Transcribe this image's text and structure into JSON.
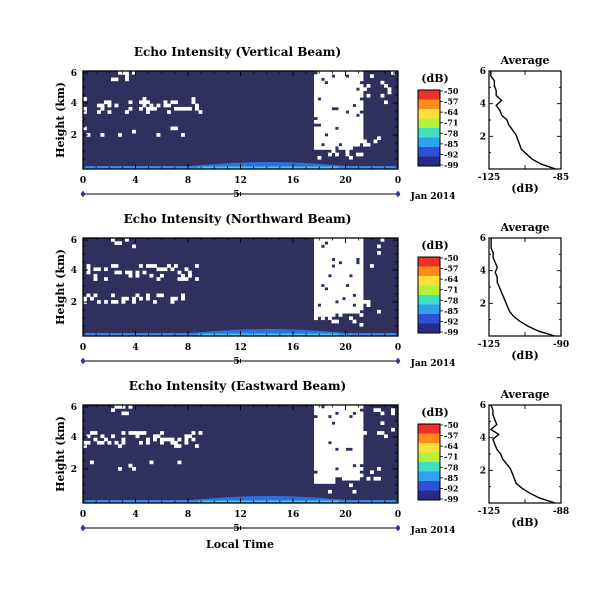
{
  "chart_data": {
    "type": "heatmap",
    "date_label": "Jan 2014",
    "xlabel": "Local Time",
    "time_ticks": [
      "0",
      "4",
      "8",
      "12",
      "16",
      "20",
      "0"
    ],
    "day_label": "5",
    "height_ticks": [
      "6",
      "4",
      "2"
    ],
    "colorbar": {
      "unit": "(dB)",
      "ticks": [
        "-50",
        "-57",
        "-64",
        "-71",
        "-78",
        "-85",
        "-92",
        "-99"
      ],
      "colors": [
        "#f0302a",
        "#ff8c1a",
        "#ffe03a",
        "#b5f03a",
        "#40e0c0",
        "#30a0f0",
        "#3050d8",
        "#2a2a8a"
      ]
    },
    "panels": [
      {
        "title": "Echo Intensity (Vertical Beam)",
        "ylabel": "Height (km)",
        "profile": {
          "title": "Average",
          "xlabel": "(dB)",
          "xticks": [
            "-125",
            "-85"
          ],
          "yticks": [
            "6",
            "4",
            "2"
          ],
          "xlim": [
            -125,
            -85
          ],
          "ylim": [
            0,
            6
          ],
          "height_km": [
            0.0,
            0.3,
            0.6,
            0.9,
            1.2,
            1.5,
            1.8,
            2.1,
            2.4,
            2.7,
            3.0,
            3.3,
            3.6,
            3.9,
            4.2,
            4.5,
            4.8,
            5.1,
            5.4,
            5.7,
            6.0
          ],
          "intensity_db": [
            -88,
            -96,
            -101,
            -104,
            -107,
            -108,
            -109,
            -110,
            -112,
            -114,
            -115,
            -118,
            -119,
            -121,
            -118,
            -121,
            -121,
            -122,
            -122,
            -124,
            -124
          ]
        }
      },
      {
        "title": "Echo Intensity (Northward Beam)",
        "ylabel": "Height (km)",
        "profile": {
          "title": "Average",
          "xlabel": "(dB)",
          "xticks": [
            "-125",
            "-90"
          ],
          "yticks": [
            "6",
            "4",
            "2"
          ],
          "xlim": [
            -125,
            -90
          ],
          "ylim": [
            0,
            6
          ],
          "height_km": [
            0.0,
            0.3,
            0.6,
            0.9,
            1.2,
            1.5,
            1.8,
            2.1,
            2.4,
            2.7,
            3.0,
            3.3,
            3.6,
            3.9,
            4.2,
            4.5,
            4.8,
            5.1,
            5.4,
            5.7,
            6.0
          ],
          "intensity_db": [
            -93,
            -101,
            -106,
            -110,
            -113,
            -115,
            -116,
            -117,
            -118,
            -119,
            -120,
            -121,
            -121,
            -122,
            -121,
            -122,
            -123,
            -123,
            -124,
            -124,
            -124
          ]
        }
      },
      {
        "title": "Echo Intensity (Eastward Beam)",
        "ylabel": "Height (km)",
        "profile": {
          "title": "Average",
          "xlabel": "(dB)",
          "xticks": [
            "-125",
            "-88"
          ],
          "yticks": [
            "6",
            "4",
            "2"
          ],
          "xlim": [
            -125,
            -88
          ],
          "ylim": [
            0,
            6
          ],
          "height_km": [
            0.0,
            0.3,
            0.6,
            0.9,
            1.2,
            1.5,
            1.8,
            2.1,
            2.4,
            2.7,
            3.0,
            3.3,
            3.6,
            3.9,
            4.2,
            4.5,
            4.8,
            5.1,
            5.4,
            5.7,
            6.0
          ],
          "intensity_db": [
            -91,
            -99,
            -104,
            -108,
            -111,
            -112,
            -113,
            -114,
            -116,
            -118,
            -119,
            -121,
            -122,
            -123,
            -120,
            -124,
            -121,
            -122,
            -123,
            -123,
            -124
          ]
        }
      }
    ]
  }
}
